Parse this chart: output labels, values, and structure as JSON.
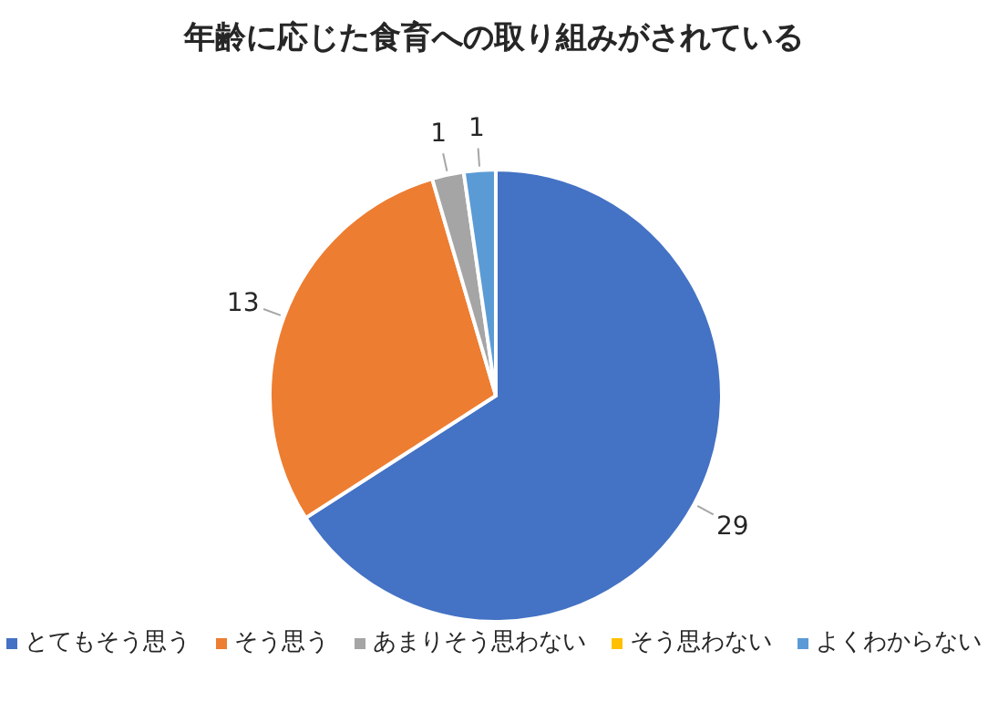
{
  "chart_data": {
    "type": "pie",
    "title": "年齢に応じた食育への取り組みがされている",
    "categories": [
      "とてもそう思う",
      "そう思う",
      "あまりそう思わない",
      "そう思わない",
      "よくわからない"
    ],
    "values": [
      29,
      13,
      1,
      0,
      1
    ],
    "colors": [
      "#4472c4",
      "#ed7d31",
      "#a5a5a5",
      "#ffc000",
      "#5b9bd5"
    ],
    "value_labels": [
      "29",
      "13",
      "1",
      null,
      "1"
    ],
    "legend": "bottom"
  }
}
